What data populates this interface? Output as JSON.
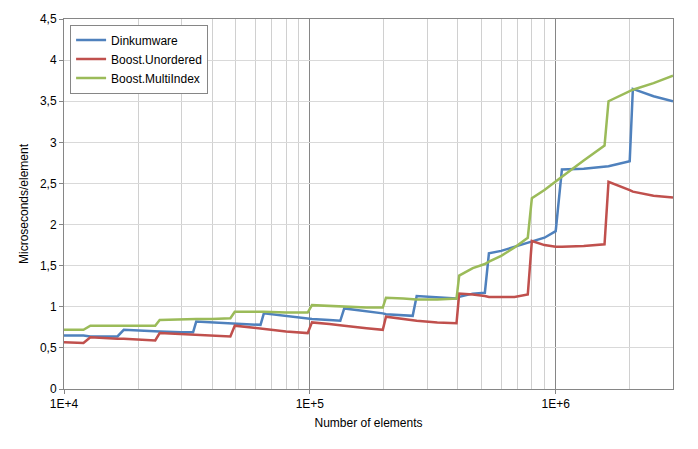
{
  "chart_data": {
    "type": "line",
    "x_label": "Number of elements",
    "y_label": "Microseconds/element",
    "log": "x",
    "grid": true,
    "legend": "upper left",
    "xlim": [
      10000,
      3000000
    ],
    "xticks": [
      {
        "value": 10000,
        "label": "1E+4"
      },
      {
        "value": 100000,
        "label": "1E+5"
      },
      {
        "value": 1000000,
        "label": "1E+6"
      }
    ],
    "ylim": [
      0,
      4.5
    ],
    "yticks": [
      0,
      {
        "value": 0.5,
        "label": "0,5"
      },
      1,
      {
        "value": 1.5,
        "label": "1,5"
      },
      2,
      {
        "value": 2.5,
        "label": "2,5"
      },
      3,
      {
        "value": 3.5,
        "label": "3,5"
      },
      4,
      {
        "value": 4.5,
        "label": "4,5"
      }
    ],
    "x": [
      10000,
      12000,
      12800,
      14000,
      16500,
      17500,
      20000,
      23500,
      24500,
      30000,
      33500,
      34500,
      40000,
      47500,
      49500,
      60000,
      63000,
      65000,
      80000,
      98000,
      102000,
      120000,
      133000,
      138000,
      170000,
      198000,
      204000,
      240000,
      262000,
      272000,
      330000,
      395000,
      405000,
      460000,
      515000,
      535000,
      600000,
      680000,
      770000,
      800000,
      900000,
      1000000,
      1060000,
      1300000,
      1580000,
      1640000,
      2000000,
      2060000,
      2500000,
      3000000
    ],
    "series": [
      {
        "name": "Dinkumware",
        "color": "#4f81bd",
        "values": [
          0.65,
          0.65,
          0.64,
          0.64,
          0.64,
          0.72,
          0.71,
          0.7,
          0.7,
          0.69,
          0.69,
          0.82,
          0.81,
          0.8,
          0.79,
          0.78,
          0.78,
          0.92,
          0.89,
          0.86,
          0.85,
          0.84,
          0.83,
          0.98,
          0.95,
          0.92,
          0.91,
          0.9,
          0.89,
          1.13,
          1.11,
          1.1,
          1.12,
          1.16,
          1.17,
          1.65,
          1.68,
          1.73,
          1.78,
          1.8,
          1.84,
          1.92,
          2.67,
          2.68,
          2.7,
          2.71,
          2.77,
          3.65,
          3.56,
          3.5
        ]
      },
      {
        "name": "Boost.Unordered",
        "color": "#c0504d",
        "values": [
          0.57,
          0.56,
          0.63,
          0.62,
          0.61,
          0.61,
          0.6,
          0.59,
          0.68,
          0.67,
          0.66,
          0.66,
          0.65,
          0.64,
          0.77,
          0.74,
          0.73,
          0.73,
          0.7,
          0.68,
          0.81,
          0.79,
          0.77,
          0.77,
          0.74,
          0.72,
          0.88,
          0.85,
          0.84,
          0.83,
          0.81,
          0.8,
          1.16,
          1.15,
          1.13,
          1.12,
          1.12,
          1.12,
          1.15,
          1.8,
          1.75,
          1.73,
          1.73,
          1.74,
          1.76,
          2.52,
          2.42,
          2.4,
          2.35,
          2.33
        ]
      },
      {
        "name": "Boost.MultiIndex",
        "color": "#9bbb59",
        "values": [
          0.72,
          0.72,
          0.77,
          0.77,
          0.77,
          0.77,
          0.77,
          0.77,
          0.84,
          0.85,
          0.85,
          0.85,
          0.85,
          0.86,
          0.94,
          0.94,
          0.94,
          0.94,
          0.93,
          0.93,
          1.02,
          1.01,
          1.0,
          1.0,
          0.99,
          0.99,
          1.11,
          1.1,
          1.09,
          1.09,
          1.09,
          1.1,
          1.38,
          1.47,
          1.52,
          1.55,
          1.62,
          1.72,
          1.84,
          2.32,
          2.42,
          2.53,
          2.58,
          2.78,
          2.96,
          3.5,
          3.62,
          3.64,
          3.72,
          3.81
        ]
      }
    ]
  }
}
